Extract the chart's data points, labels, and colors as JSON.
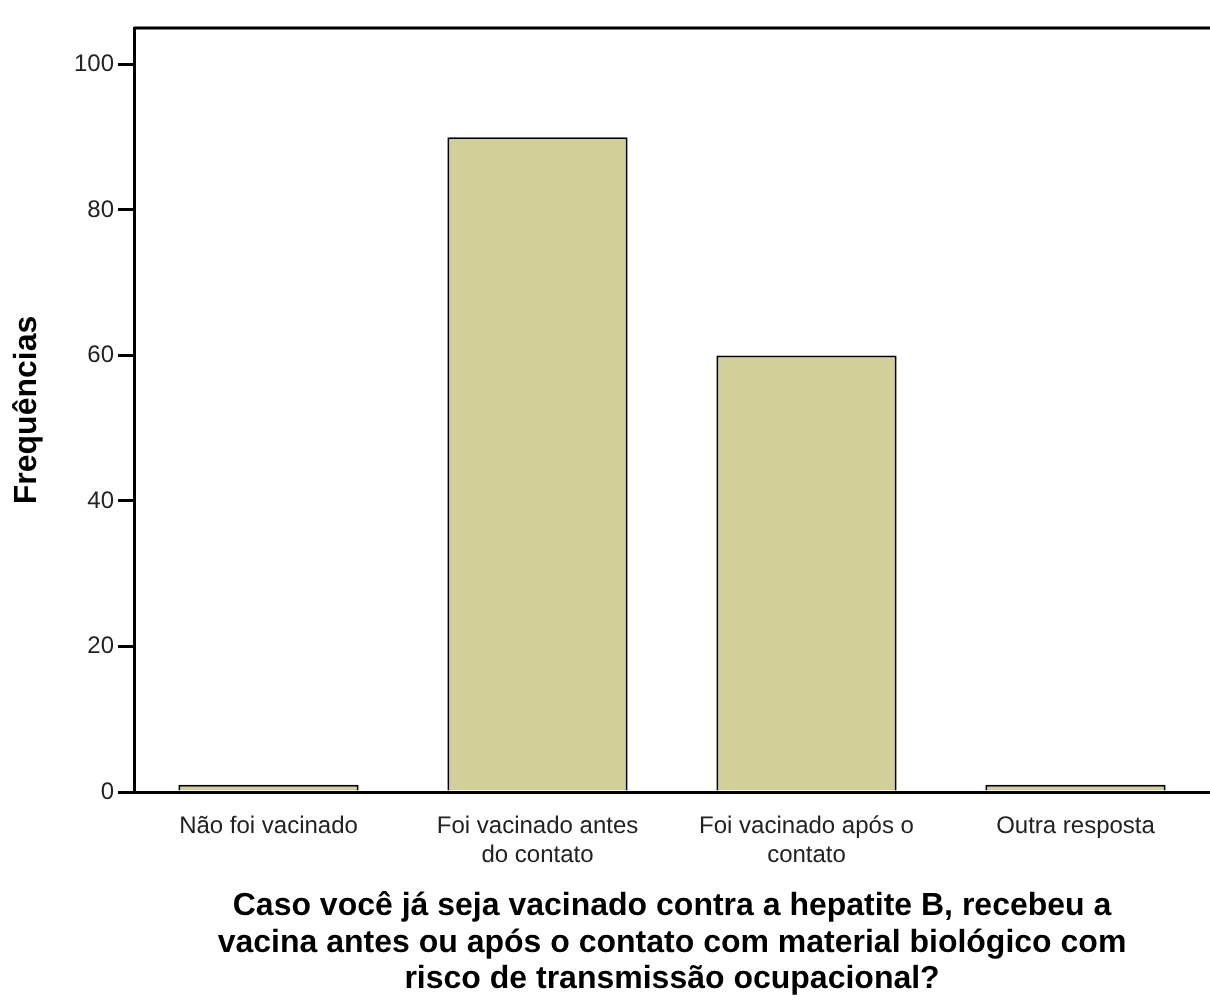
{
  "chart_data": {
    "type": "bar",
    "xlabel": "Caso você já seja vacinado contra a hepatite B, recebeu a vacina antes ou após o contato com material biológico com risco de transmissão ocupacional?",
    "ylabel": "Frequências",
    "categories": [
      "Não foi vacinado",
      "Foi vacinado antes do contato",
      "Foi vacinado após o contato",
      "Outra resposta"
    ],
    "values": [
      1,
      90,
      60,
      1
    ],
    "color": "#d3cf98",
    "ylim": [
      0,
      105
    ],
    "yticks": [
      0,
      20,
      40,
      60,
      80,
      100
    ],
    "grid": false,
    "legend": false
  }
}
